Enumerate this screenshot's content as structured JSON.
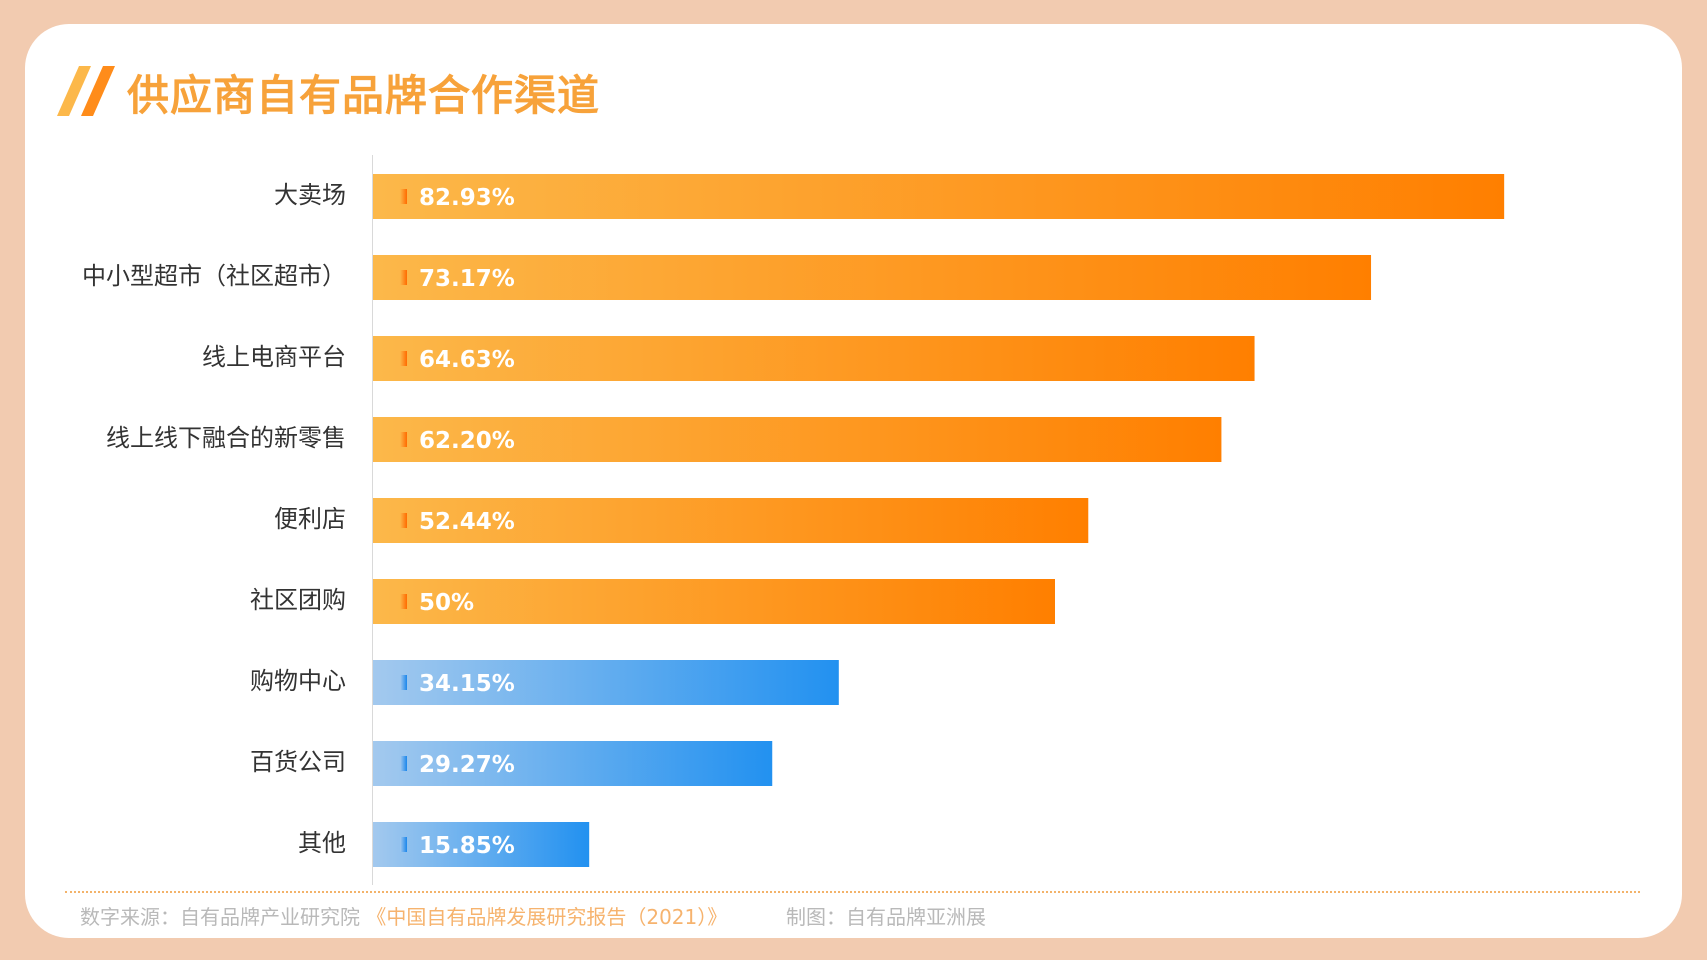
{
  "title": "供应商自有品牌合作渠道",
  "colors": {
    "orange_start": "#fcb84a",
    "orange_end": "#ff7f00",
    "blue_start": "#a3c9ee",
    "blue_end": "#2291f0",
    "title": "#f7a23a"
  },
  "chart_data": {
    "type": "bar",
    "orientation": "horizontal",
    "title": "供应商自有品牌合作渠道",
    "categories": [
      "大卖场",
      "中小型超市（社区超市）",
      "线上电商平台",
      "线上线下融合的新零售",
      "便利店",
      "社区团购",
      "购物中心",
      "百货公司",
      "其他"
    ],
    "values": [
      82.93,
      73.17,
      64.63,
      62.2,
      52.44,
      50,
      34.15,
      29.27,
      15.85
    ],
    "labels": [
      "82.93%",
      "73.17%",
      "64.63%",
      "62.20%",
      "52.44%",
      "50%",
      "34.15%",
      "29.27%",
      "15.85%"
    ],
    "highlight": [
      "orange",
      "orange",
      "orange",
      "orange",
      "orange",
      "orange",
      "blue",
      "blue",
      "blue"
    ],
    "xlim": [
      0,
      100
    ],
    "xlabel": "",
    "ylabel": "",
    "grid": false,
    "legend": "none"
  },
  "footer": {
    "source_label": "数字来源：",
    "source_org": "自有品牌产业研究院",
    "source_report": "《中国自有品牌发展研究报告（2021）》",
    "maker_label": "制图：",
    "maker": "自有品牌亚洲展"
  }
}
